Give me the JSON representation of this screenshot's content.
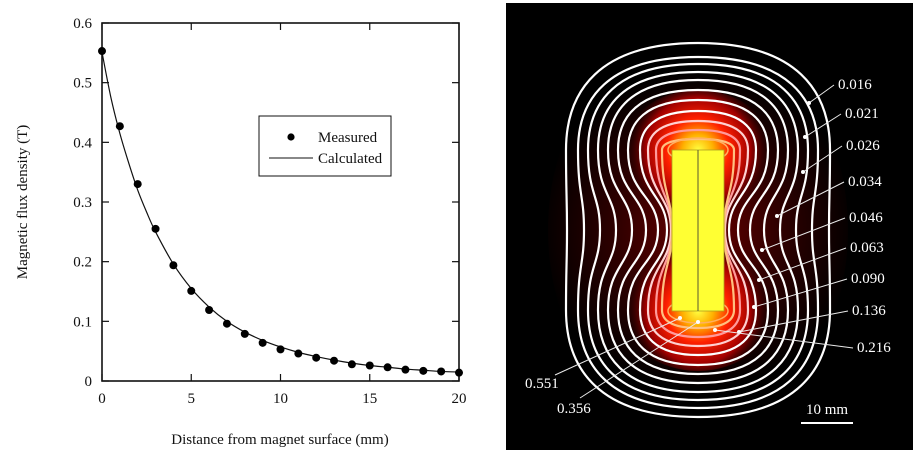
{
  "chart_data": {
    "type": "scatter",
    "title": "",
    "xlabel": "Distance from magnet surface (mm)",
    "ylabel": "Magnetic flux density (T)",
    "xlim": [
      0,
      20
    ],
    "ylim": [
      0,
      0.6
    ],
    "xticks": [
      0,
      5,
      10,
      15,
      20
    ],
    "xtick_labels": [
      "0",
      "5",
      "10",
      "15",
      "20"
    ],
    "yticks": [
      0,
      0.1,
      0.2,
      0.3,
      0.4,
      0.5,
      0.6
    ],
    "ytick_labels": [
      "0",
      "0.1",
      "0.2",
      "0.3",
      "0.4",
      "0.5",
      "0.6"
    ],
    "grid": false,
    "legend_position": "upper-center-right",
    "series": [
      {
        "name": "Measured",
        "style": "markers",
        "x": [
          0,
          1,
          2,
          3,
          4,
          5,
          6,
          7,
          8,
          9,
          10,
          11,
          12,
          13,
          14,
          15,
          16,
          17,
          18,
          19,
          20
        ],
        "values": [
          0.553,
          0.427,
          0.33,
          0.255,
          0.194,
          0.151,
          0.119,
          0.096,
          0.079,
          0.064,
          0.053,
          0.046,
          0.039,
          0.034,
          0.028,
          0.026,
          0.023,
          0.019,
          0.017,
          0.016,
          0.014
        ]
      },
      {
        "name": "Calculated",
        "style": "line",
        "x": [
          0,
          0.5,
          1,
          1.5,
          2,
          2.5,
          3,
          4,
          5,
          6,
          7,
          8,
          9,
          10,
          11,
          12,
          13,
          14,
          15,
          16,
          17,
          18,
          19,
          20
        ],
        "values": [
          0.551,
          0.475,
          0.415,
          0.365,
          0.32,
          0.283,
          0.25,
          0.196,
          0.155,
          0.124,
          0.1,
          0.082,
          0.068,
          0.057,
          0.048,
          0.041,
          0.035,
          0.03,
          0.026,
          0.023,
          0.02,
          0.018,
          0.016,
          0.015
        ]
      }
    ]
  },
  "field_map": {
    "description": "Simulated magnetic flux density contour map around a cylindrical magnet",
    "contour_labels_right": [
      "0.016",
      "0.021",
      "0.026",
      "0.034",
      "0.046",
      "0.063",
      "0.090",
      "0.136",
      "0.216"
    ],
    "contour_labels_left": [
      "0.551",
      "0.356"
    ],
    "scale_bar_label": "10 mm",
    "colors": {
      "background": "#000000",
      "magnet": "#ffff33",
      "hot": "#ff2a00",
      "contour": "#ffffff"
    }
  }
}
